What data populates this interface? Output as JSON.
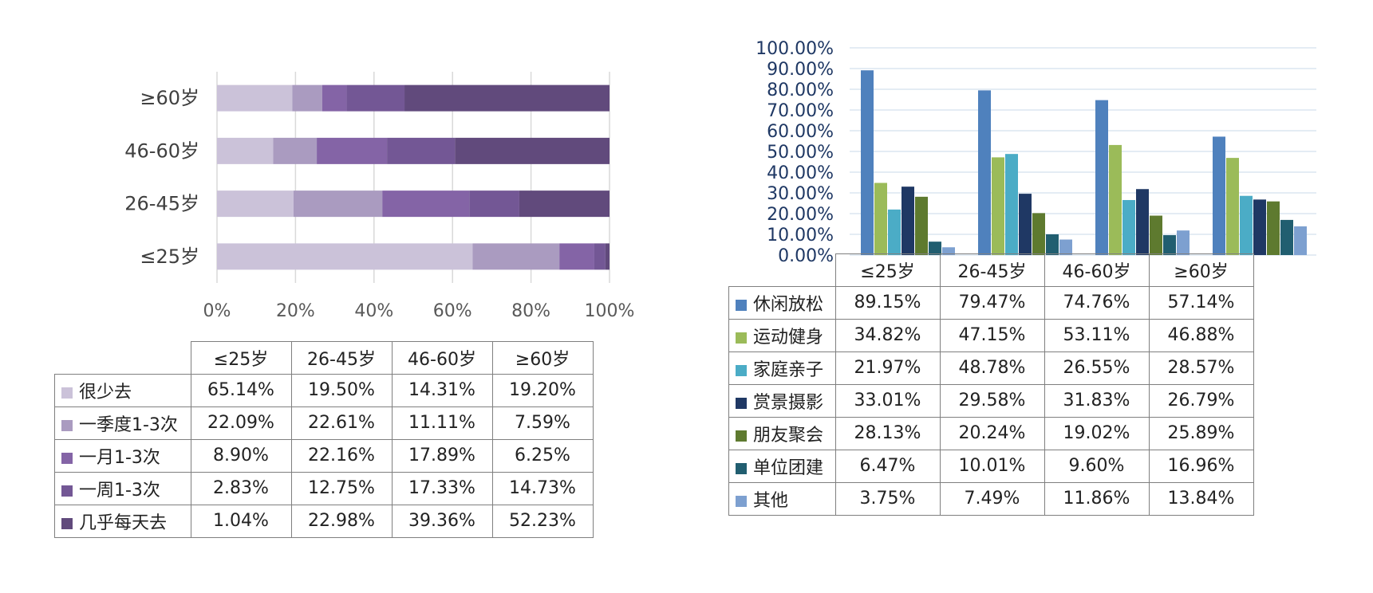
{
  "chart_data": [
    {
      "type": "bar",
      "orientation": "horizontal",
      "stacked": "percent",
      "categories": [
        "≤25岁",
        "26-45岁",
        "46-60岁",
        "≥60岁"
      ],
      "series": [
        {
          "name": "很少去",
          "color": "#cbc2d9",
          "values": [
            65.14,
            19.5,
            14.31,
            19.2
          ],
          "labels": [
            "65.14%",
            "19.50%",
            "14.31%",
            "19.20%"
          ]
        },
        {
          "name": "一季度1-3次",
          "color": "#aa9bc0",
          "values": [
            22.09,
            22.61,
            11.11,
            7.59
          ],
          "labels": [
            "22.09%",
            "22.61%",
            "11.11%",
            "7.59%"
          ]
        },
        {
          "name": "一月1-3次",
          "color": "#8464a6",
          "values": [
            8.9,
            22.16,
            17.89,
            6.25
          ],
          "labels": [
            "8.90%",
            "22.16%",
            "17.89%",
            "6.25%"
          ]
        },
        {
          "name": "一周1-3次",
          "color": "#735795",
          "values": [
            2.83,
            12.75,
            17.33,
            14.73
          ],
          "labels": [
            "2.83%",
            "12.75%",
            "17.33%",
            "14.73%"
          ]
        },
        {
          "name": "几乎每天去",
          "color": "#614a7c",
          "values": [
            1.04,
            22.98,
            39.36,
            52.23
          ],
          "labels": [
            "1.04%",
            "22.98%",
            "39.36%",
            "52.23%"
          ]
        }
      ],
      "xticks": [
        "0%",
        "20%",
        "40%",
        "60%",
        "80%",
        "100%"
      ],
      "xlim": [
        0,
        100
      ],
      "grid": true
    },
    {
      "type": "bar",
      "orientation": "vertical",
      "categories": [
        "≤25岁",
        "26-45岁",
        "46-60岁",
        "≥60岁"
      ],
      "series": [
        {
          "name": "休闲放松",
          "color": "#4f81bd",
          "values": [
            89.15,
            79.47,
            74.76,
            57.14
          ],
          "labels": [
            "89.15%",
            "79.47%",
            "74.76%",
            "57.14%"
          ]
        },
        {
          "name": "运动健身",
          "color": "#9bbb59",
          "values": [
            34.82,
            47.15,
            53.11,
            46.88
          ],
          "labels": [
            "34.82%",
            "47.15%",
            "53.11%",
            "46.88%"
          ]
        },
        {
          "name": "家庭亲子",
          "color": "#4bacc6",
          "values": [
            21.97,
            48.78,
            26.55,
            28.57
          ],
          "labels": [
            "21.97%",
            "48.78%",
            "26.55%",
            "28.57%"
          ]
        },
        {
          "name": "赏景摄影",
          "color": "#1f3864",
          "values": [
            33.01,
            29.58,
            31.83,
            26.79
          ],
          "labels": [
            "33.01%",
            "29.58%",
            "31.83%",
            "26.79%"
          ]
        },
        {
          "name": "朋友聚会",
          "color": "#5e7a2f",
          "values": [
            28.13,
            20.24,
            19.02,
            25.89
          ],
          "labels": [
            "28.13%",
            "20.24%",
            "19.02%",
            "25.89%"
          ]
        },
        {
          "name": "单位团建",
          "color": "#215e70",
          "values": [
            6.47,
            10.01,
            9.6,
            16.96
          ],
          "labels": [
            "6.47%",
            "10.01%",
            "9.60%",
            "16.96%"
          ]
        },
        {
          "name": "其他",
          "color": "#7da0d0",
          "values": [
            3.75,
            7.49,
            11.86,
            13.84
          ],
          "labels": [
            "3.75%",
            "7.49%",
            "11.86%",
            "13.84%"
          ]
        }
      ],
      "yticks": [
        "0.00%",
        "10.00%",
        "20.00%",
        "30.00%",
        "40.00%",
        "50.00%",
        "60.00%",
        "70.00%",
        "80.00%",
        "90.00%",
        "100.00%"
      ],
      "ylim": [
        0,
        100
      ],
      "grid": true
    }
  ]
}
